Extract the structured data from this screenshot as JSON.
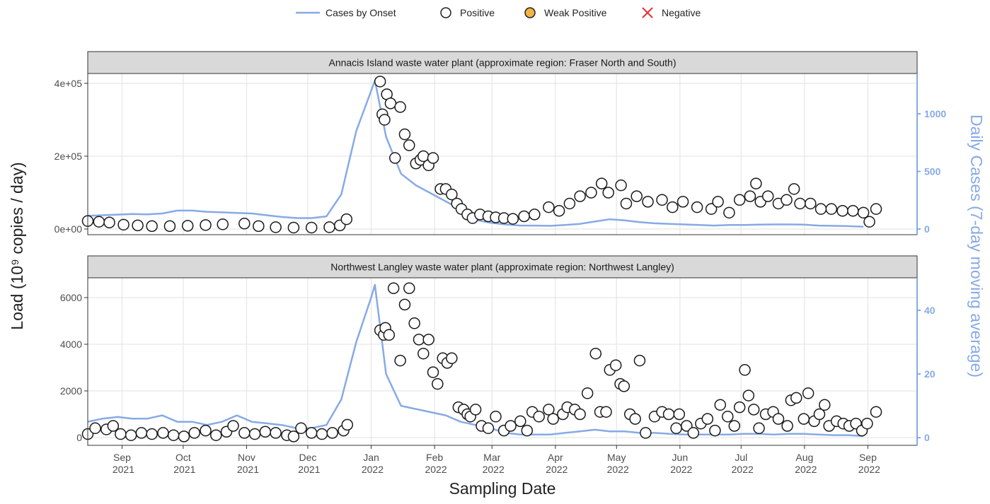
{
  "legend": {
    "position": "top",
    "items": [
      {
        "name": "Cases by Onset",
        "color": "#86aae6",
        "marker": "line"
      },
      {
        "name": "Positive",
        "color": "#ffffff",
        "marker": "circle"
      },
      {
        "name": "Weak Positive",
        "color": "#f2b441",
        "marker": "circle"
      },
      {
        "name": "Negative",
        "color": "#e8302f",
        "marker": "cross"
      }
    ]
  },
  "y_label": "Load (10⁹ copies / day)",
  "y2_label": "Daily Cases (7-day moving average)",
  "x_label": "Sampling Date",
  "chart_data": [
    {
      "type": "combo",
      "title": "Annacis Island waste water plant (approximate region: Fraser North and South)",
      "grid": true,
      "xlim": [
        2021.62,
        2022.732
      ],
      "xticks": [
        2021.666,
        2021.748,
        2021.833,
        2021.915,
        2022.0,
        2022.085,
        2022.162,
        2022.247,
        2022.329,
        2022.414,
        2022.496,
        2022.581,
        2022.666
      ],
      "ylim": [
        -15500,
        427000
      ],
      "yticks": [
        {
          "value": 0,
          "label": "0e+00"
        },
        {
          "value": 200000,
          "label": "2e+05"
        },
        {
          "value": 400000,
          "label": "4e+05"
        }
      ],
      "y2lim": [
        -49,
        1350
      ],
      "y2ticks": [
        0,
        500,
        1000
      ],
      "series": [
        {
          "name": "Cases by Onset",
          "type": "line",
          "axis": "y2",
          "color": "#86aae6",
          "x": [
            2021.62,
            2021.64,
            2021.66,
            2021.68,
            2021.7,
            2021.72,
            2021.74,
            2021.76,
            2021.78,
            2021.8,
            2021.82,
            2021.84,
            2021.86,
            2021.88,
            2021.9,
            2021.92,
            2021.94,
            2021.96,
            2021.98,
            2022.0,
            2022.005,
            2022.02,
            2022.04,
            2022.06,
            2022.08,
            2022.1,
            2022.12,
            2022.14,
            2022.16,
            2022.18,
            2022.2,
            2022.22,
            2022.24,
            2022.26,
            2022.28,
            2022.3,
            2022.32,
            2022.34,
            2022.36,
            2022.38,
            2022.4,
            2022.42,
            2022.44,
            2022.46,
            2022.48,
            2022.5,
            2022.52,
            2022.54,
            2022.56,
            2022.58,
            2022.6,
            2022.62,
            2022.64,
            2022.66
          ],
          "values": [
            115,
            120,
            125,
            130,
            128,
            135,
            160,
            160,
            150,
            145,
            140,
            135,
            120,
            105,
            95,
            95,
            110,
            300,
            850,
            1200,
            1290,
            800,
            480,
            380,
            310,
            240,
            170,
            80,
            55,
            40,
            30,
            30,
            28,
            35,
            45,
            65,
            85,
            75,
            60,
            50,
            45,
            40,
            35,
            30,
            35,
            35,
            38,
            40,
            40,
            38,
            30,
            28,
            25,
            20
          ]
        },
        {
          "name": "Positive",
          "type": "scatter",
          "color": "#ffffff",
          "x": [
            2021.62,
            2021.635,
            2021.649,
            2021.668,
            2021.687,
            2021.706,
            2021.73,
            2021.754,
            2021.778,
            2021.801,
            2021.83,
            2021.849,
            2021.872,
            2021.896,
            2021.92,
            2021.944,
            2021.958,
            2021.967,
            2022.012,
            2022.015,
            2022.018,
            2022.021,
            2022.026,
            2022.032,
            2022.039,
            2022.045,
            2022.051,
            2022.06,
            2022.066,
            2022.07,
            2022.077,
            2022.083,
            2022.093,
            2022.1,
            2022.108,
            2022.115,
            2022.121,
            2022.129,
            2022.136,
            2022.146,
            2022.157,
            2022.167,
            2022.178,
            2022.19,
            2022.205,
            2022.219,
            2022.238,
            2022.252,
            2022.266,
            2022.28,
            2022.295,
            2022.309,
            2022.318,
            2022.335,
            2022.342,
            2022.356,
            2022.371,
            2022.39,
            2022.404,
            2022.418,
            2022.437,
            2022.456,
            2022.465,
            2022.48,
            2022.494,
            2022.508,
            2022.516,
            2022.522,
            2022.532,
            2022.546,
            2022.557,
            2022.567,
            2022.575,
            2022.589,
            2022.603,
            2022.617,
            2022.632,
            2022.646,
            2022.66,
            2022.668,
            2022.677
          ],
          "values": [
            22000,
            20000,
            18000,
            12000,
            10000,
            8000,
            8000,
            9000,
            11000,
            13000,
            15000,
            8000,
            5000,
            4000,
            4000,
            5000,
            10000,
            27000,
            405000,
            315000,
            300000,
            370000,
            345000,
            195000,
            335000,
            260000,
            230000,
            180000,
            190000,
            200000,
            175000,
            195000,
            110000,
            110000,
            95000,
            70000,
            55000,
            40000,
            30000,
            40000,
            35000,
            32000,
            30000,
            28000,
            35000,
            40000,
            60000,
            50000,
            70000,
            90000,
            100000,
            125000,
            100000,
            120000,
            70000,
            90000,
            75000,
            80000,
            60000,
            75000,
            60000,
            55000,
            75000,
            45000,
            80000,
            90000,
            125000,
            75000,
            90000,
            70000,
            80000,
            110000,
            70000,
            70000,
            55000,
            55000,
            50000,
            50000,
            45000,
            20000,
            55000
          ]
        }
      ]
    },
    {
      "type": "combo",
      "title": "Northwest Langley waste water plant (approximate region: Northwest Langley)",
      "grid": true,
      "xlim": [
        2021.62,
        2022.732
      ],
      "xticks": [
        {
          "value": 2021.666,
          "label": "Sep 2021"
        },
        {
          "value": 2021.748,
          "label": "Oct 2021"
        },
        {
          "value": 2021.833,
          "label": "Nov 2021"
        },
        {
          "value": 2021.915,
          "label": "Dec 2021"
        },
        {
          "value": 2022.0,
          "label": "Jan 2022"
        },
        {
          "value": 2022.085,
          "label": "Feb 2022"
        },
        {
          "value": 2022.162,
          "label": "Mar 2022"
        },
        {
          "value": 2022.247,
          "label": "Apr 2022"
        },
        {
          "value": 2022.329,
          "label": "May 2022"
        },
        {
          "value": 2022.414,
          "label": "Jun 2022"
        },
        {
          "value": 2022.496,
          "label": "Jul 2022"
        },
        {
          "value": 2022.581,
          "label": "Aug 2022"
        },
        {
          "value": 2022.666,
          "label": "Sep 2022"
        }
      ],
      "ylim": [
        -333,
        6848
      ],
      "yticks": [
        0,
        2000,
        4000,
        6000
      ],
      "y2lim": [
        -2.4,
        50.2
      ],
      "y2ticks": [
        0,
        20,
        40
      ],
      "series": [
        {
          "name": "Cases by Onset",
          "type": "line",
          "axis": "y2",
          "color": "#86aae6",
          "x": [
            2021.62,
            2021.64,
            2021.66,
            2021.68,
            2021.7,
            2021.72,
            2021.74,
            2021.76,
            2021.78,
            2021.8,
            2021.82,
            2021.84,
            2021.86,
            2021.88,
            2021.9,
            2021.92,
            2021.94,
            2021.96,
            2021.98,
            2022.0,
            2022.005,
            2022.02,
            2022.04,
            2022.06,
            2022.08,
            2022.1,
            2022.12,
            2022.14,
            2022.16,
            2022.18,
            2022.2,
            2022.22,
            2022.24,
            2022.26,
            2022.28,
            2022.3,
            2022.32,
            2022.34,
            2022.36,
            2022.38,
            2022.4,
            2022.42,
            2022.44,
            2022.46,
            2022.48,
            2022.5,
            2022.52,
            2022.54,
            2022.56,
            2022.58,
            2022.6,
            2022.62,
            2022.64,
            2022.66
          ],
          "values": [
            5,
            6,
            6.5,
            6,
            6,
            7,
            5,
            5,
            4,
            5,
            7,
            5,
            4.5,
            4,
            3,
            3,
            4,
            12,
            30,
            44,
            48,
            20,
            10,
            9,
            8,
            7,
            5,
            4,
            3,
            1.5,
            1,
            1,
            1,
            1.5,
            2,
            2.5,
            2,
            2,
            1.5,
            1.5,
            1.2,
            1,
            1,
            1,
            1,
            1.2,
            1.2,
            1,
            1.2,
            1.2,
            1,
            0.8,
            0.8,
            0.5
          ]
        },
        {
          "name": "Positive",
          "type": "scatter",
          "color": "#ffffff",
          "x": [
            2021.62,
            2021.63,
            2021.645,
            2021.654,
            2021.664,
            2021.678,
            2021.692,
            2021.706,
            2021.721,
            2021.735,
            2021.749,
            2021.763,
            2021.778,
            2021.792,
            2021.806,
            2021.815,
            2021.83,
            2021.844,
            2021.858,
            2021.872,
            2021.887,
            2021.896,
            2021.906,
            2021.92,
            2021.934,
            2021.948,
            2021.963,
            2021.968,
            2022.012,
            2022.017,
            2022.019,
            2022.024,
            2022.03,
            2022.039,
            2022.045,
            2022.051,
            2022.058,
            2022.064,
            2022.07,
            2022.077,
            2022.083,
            2022.089,
            2022.096,
            2022.102,
            2022.108,
            2022.117,
            2022.124,
            2022.129,
            2022.133,
            2022.14,
            2022.148,
            2022.157,
            2022.167,
            2022.178,
            2022.187,
            2022.2,
            2022.209,
            2022.216,
            2022.225,
            2022.238,
            2022.244,
            2022.257,
            2022.263,
            2022.273,
            2022.28,
            2022.29,
            2022.301,
            2022.307,
            2022.315,
            2022.32,
            2022.328,
            2022.334,
            2022.339,
            2022.347,
            2022.354,
            2022.36,
            2022.368,
            2022.38,
            2022.39,
            2022.399,
            2022.409,
            2022.413,
            2022.423,
            2022.432,
            2022.442,
            2022.451,
            2022.461,
            2022.468,
            2022.478,
            2022.487,
            2022.494,
            2022.501,
            2022.506,
            2022.513,
            2022.52,
            2022.529,
            2022.539,
            2022.546,
            2022.558,
            2022.563,
            2022.57,
            2022.58,
            2022.586,
            2022.594,
            2022.601,
            2022.608,
            2022.614,
            2022.624,
            2022.633,
            2022.641,
            2022.65,
            2022.658,
            2022.665,
            2022.677
          ],
          "values": [
            150,
            400,
            350,
            500,
            150,
            100,
            200,
            150,
            200,
            100,
            50,
            200,
            300,
            100,
            250,
            500,
            200,
            150,
            250,
            200,
            100,
            50,
            400,
            200,
            150,
            200,
            300,
            550,
            4600,
            4400,
            4700,
            4400,
            6400,
            3300,
            5700,
            6400,
            4900,
            4200,
            3600,
            4200,
            2800,
            2300,
            3400,
            3200,
            3400,
            1300,
            1200,
            1000,
            900,
            1200,
            500,
            400,
            900,
            300,
            500,
            700,
            300,
            1100,
            900,
            1200,
            800,
            1000,
            1300,
            1200,
            1000,
            1900,
            3600,
            1100,
            1100,
            2900,
            3100,
            2300,
            2200,
            1000,
            800,
            3300,
            200,
            900,
            1100,
            1000,
            400,
            1000,
            500,
            200,
            600,
            800,
            300,
            1400,
            900,
            500,
            1300,
            2900,
            1800,
            1200,
            400,
            1000,
            1100,
            800,
            500,
            1600,
            1700,
            800,
            1900,
            700,
            1000,
            1400,
            500,
            700,
            600,
            500,
            600,
            300,
            600,
            1100
          ]
        }
      ]
    }
  ]
}
